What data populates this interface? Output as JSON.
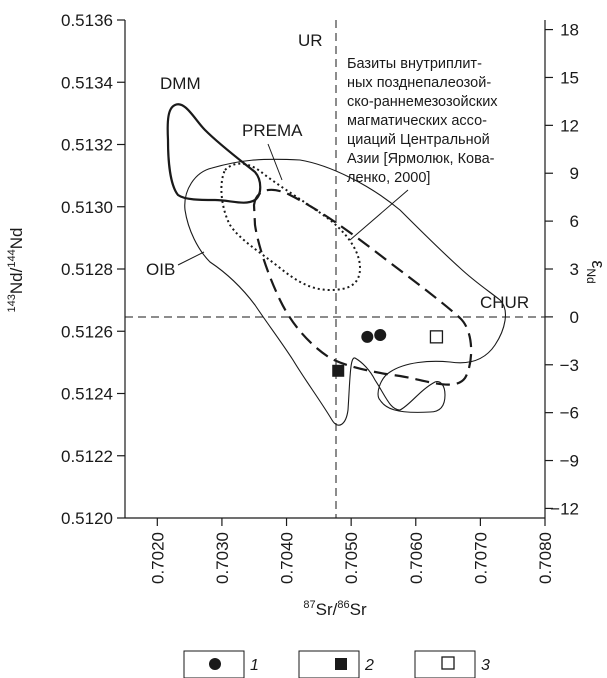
{
  "chart_data": {
    "type": "scatter",
    "xlabel_parts": {
      "sup1": "87",
      "t1": "Sr/",
      "sup2": "86",
      "t2": "Sr"
    },
    "ylabel_parts": {
      "sup1": "143",
      "t1": "Nd/",
      "sup2": "144",
      "t2": "Nd"
    },
    "y2label_parts": {
      "main": "ε",
      "sub": "Nd"
    },
    "xlim": [
      0.7015,
      0.708
    ],
    "ylim": [
      0.512,
      0.5136
    ],
    "y2lim": [
      -12.6,
      18.6
    ],
    "x_ticks": [
      "0.7020",
      "0.7030",
      "0.7040",
      "0.7050",
      "0.7060",
      "0.7070",
      "0.7080"
    ],
    "y_ticks": [
      "0.5120",
      "0.5122",
      "0.5124",
      "0.5126",
      "0.5128",
      "0.5130",
      "0.5132",
      "0.5134",
      "0.5136"
    ],
    "y2_ticks": [
      "−12",
      "−9",
      "−6",
      "−3",
      "0",
      "3",
      "6",
      "9",
      "12",
      "15",
      "18"
    ],
    "reference_lines": [
      {
        "label": "UR",
        "orientation": "vertical",
        "value": 0.70475
      },
      {
        "label": "CHUR",
        "orientation": "horizontal",
        "value": 0.512638
      }
    ],
    "fields": [
      {
        "label": "DMM",
        "style": "thick-solid"
      },
      {
        "label": "PREMA",
        "style": "dotted"
      },
      {
        "label": "OIB",
        "style": "thin-solid"
      },
      {
        "label": "",
        "style": "dashed"
      }
    ],
    "annotation": {
      "lines": [
        "Базиты внутриплит-",
        "ных позднепалеозой-",
        "ско-раннемезозойских",
        "магматических ассо-",
        "циаций Центральной",
        "Азии [Ярмолюк, Кова-",
        "ленко, 2000]"
      ]
    },
    "points": [
      {
        "group": "1",
        "marker": "filled-circle",
        "x": 0.70525,
        "y": 0.512582
      },
      {
        "group": "1",
        "marker": "filled-circle",
        "x": 0.70545,
        "y": 0.512588
      },
      {
        "group": "2",
        "marker": "filled-square",
        "x": 0.7048,
        "y": 0.512473
      },
      {
        "group": "3",
        "marker": "open-square",
        "x": 0.70632,
        "y": 0.512582
      }
    ],
    "legend": [
      {
        "marker": "filled-circle",
        "label": "1"
      },
      {
        "marker": "filled-square",
        "label": "2"
      },
      {
        "marker": "open-square",
        "label": "3"
      }
    ]
  }
}
